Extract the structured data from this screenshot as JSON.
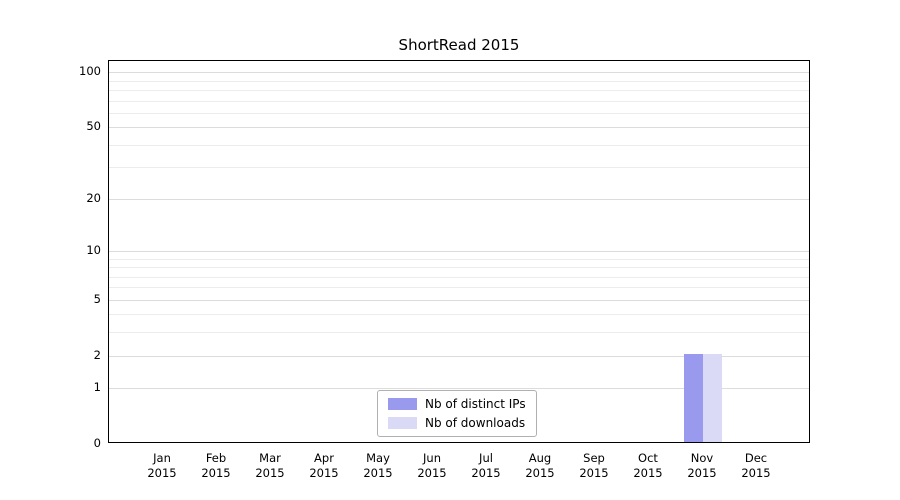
{
  "chart_data": {
    "type": "bar",
    "title": "ShortRead 2015",
    "xlabel": "",
    "ylabel": "",
    "categories": [
      "Jan 2015",
      "Feb 2015",
      "Mar 2015",
      "Apr 2015",
      "May 2015",
      "Jun 2015",
      "Jul 2015",
      "Aug 2015",
      "Sep 2015",
      "Oct 2015",
      "Nov 2015",
      "Dec 2015"
    ],
    "series": [
      {
        "name": "Nb of distinct IPs",
        "color": "#9999ee",
        "values": [
          0,
          0,
          0,
          0,
          0,
          0,
          0,
          0,
          0,
          0,
          2,
          0
        ]
      },
      {
        "name": "Nb of downloads",
        "color": "#dadaf7",
        "values": [
          0,
          0,
          0,
          0,
          0,
          0,
          0,
          0,
          0,
          0,
          2,
          0
        ]
      }
    ],
    "scale": "log1p",
    "ylim": [
      0,
      115
    ],
    "yticks": [
      0,
      1,
      2,
      5,
      10,
      20,
      50,
      100
    ],
    "grid_major": [
      1,
      2,
      5,
      10,
      20,
      50,
      100
    ],
    "grid_minor": [
      3,
      4,
      6,
      7,
      8,
      9,
      30,
      40,
      60,
      70,
      80,
      90
    ],
    "grid": true,
    "legend_position": "bottom-center"
  }
}
